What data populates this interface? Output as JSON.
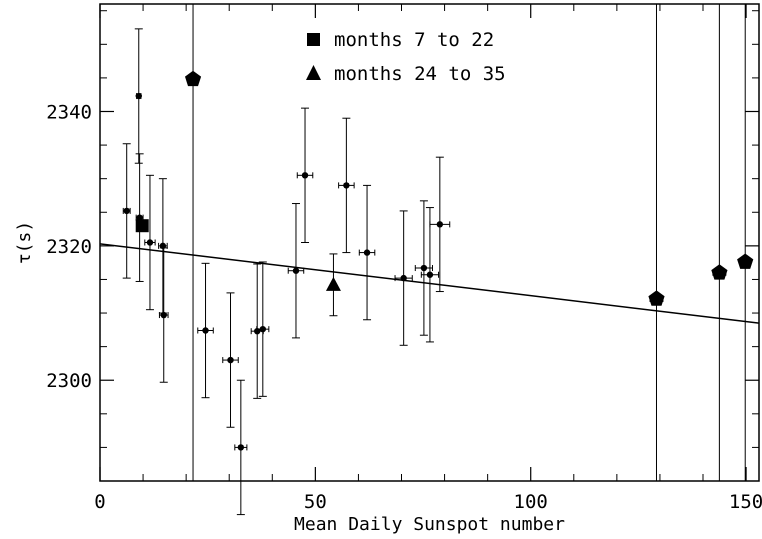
{
  "chart_data": {
    "type": "scatter",
    "xlabel": "Mean Daily Sunspot number",
    "ylabel": "τ(s)",
    "xlim": [
      0,
      153
    ],
    "ylim": [
      2285,
      2356
    ],
    "x_ticks": [
      0,
      50,
      100,
      150
    ],
    "y_ticks": [
      2300,
      2320,
      2340
    ],
    "grid": false,
    "legend_position": "top-center",
    "legend": [
      {
        "marker": "square",
        "label": "months 7 to 22"
      },
      {
        "marker": "triangle",
        "label": "months 24 to 35"
      }
    ],
    "fit_line": {
      "x": [
        0,
        153
      ],
      "y": [
        2320.3,
        2308.5
      ]
    },
    "series": [
      {
        "marker": "dot",
        "points": [
          {
            "x": 6.2,
            "y": 2325.2,
            "yerr": 10,
            "xerr": 0.8
          },
          {
            "x": 9.0,
            "y": 2342.3,
            "yerr": 10,
            "xerr": 0.5
          },
          {
            "x": 9.2,
            "y": 2324.2,
            "yerr": 9.5,
            "xerr": 0.8
          },
          {
            "x": 11.6,
            "y": 2320.5,
            "yerr": 10,
            "xerr": 1.2
          },
          {
            "x": 14.6,
            "y": 2320.0,
            "yerr": 10,
            "xerr": 1.0
          },
          {
            "x": 14.8,
            "y": 2309.7,
            "yerr": 10,
            "xerr": 1.0
          },
          {
            "x": 24.5,
            "y": 2307.4,
            "yerr": 10,
            "xerr": 1.8
          },
          {
            "x": 30.3,
            "y": 2303.0,
            "yerr": 10,
            "xerr": 1.8
          },
          {
            "x": 32.7,
            "y": 2290.0,
            "yerr": 10,
            "xerr": 1.4
          },
          {
            "x": 36.5,
            "y": 2307.3,
            "yerr": 10,
            "xerr": 1.4
          },
          {
            "x": 37.8,
            "y": 2307.6,
            "yerr": 10,
            "xerr": 1.4
          },
          {
            "x": 45.5,
            "y": 2316.3,
            "yerr": 10,
            "xerr": 1.8
          },
          {
            "x": 47.6,
            "y": 2330.5,
            "yerr": 10,
            "xerr": 1.8
          },
          {
            "x": 57.2,
            "y": 2329.0,
            "yerr": 10,
            "xerr": 1.8
          },
          {
            "x": 62.0,
            "y": 2319.0,
            "yerr": 10,
            "xerr": 1.8
          },
          {
            "x": 70.5,
            "y": 2315.2,
            "yerr": 10,
            "xerr": 2.0
          },
          {
            "x": 75.2,
            "y": 2316.7,
            "yerr": 10,
            "xerr": 2.0
          },
          {
            "x": 76.6,
            "y": 2315.7,
            "yerr": 10,
            "xerr": 2.0
          },
          {
            "x": 78.9,
            "y": 2323.2,
            "yerr": 10,
            "xerr": 2.3
          }
        ]
      },
      {
        "marker": "square",
        "points": [
          {
            "x": 9.8,
            "y": 2323.0
          }
        ]
      },
      {
        "marker": "triangle",
        "points": [
          {
            "x": 54.2,
            "y": 2314.2,
            "yerr": 4.6
          }
        ]
      },
      {
        "marker": "pentagon",
        "points": [
          {
            "x": 21.6,
            "y": 2344.8,
            "yerr_full": true
          },
          {
            "x": 129.2,
            "y": 2312.1,
            "yerr_full": true,
            "xerr": 1.5
          },
          {
            "x": 143.8,
            "y": 2316.0,
            "yerr_full": true,
            "xerr": 1.5
          },
          {
            "x": 149.8,
            "y": 2317.6,
            "yerr_full": true,
            "xerr": 1.0
          }
        ]
      }
    ]
  }
}
